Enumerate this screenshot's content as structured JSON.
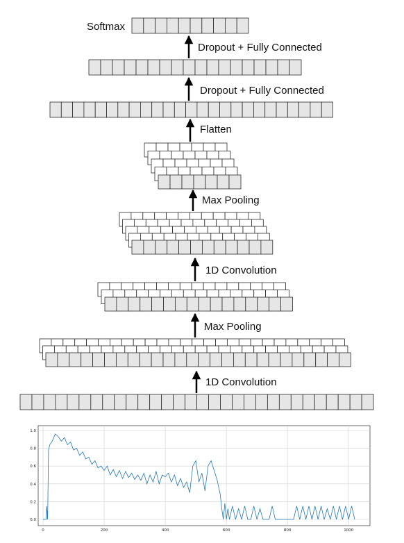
{
  "diagram": {
    "labels": {
      "softmax": "Softmax",
      "dense2": "Dropout + Fully Connected",
      "dense1": "Dropout + Fully Connected",
      "flatten": "Flatten",
      "pool2": "Max Pooling",
      "conv2": "1D Convolution",
      "pool1": "Max Pooling",
      "conv1": "1D Convolution"
    },
    "layers": [
      {
        "id": "output",
        "name": "softmax-output-layer",
        "cells": 10,
        "depth": 1
      },
      {
        "id": "dense2",
        "name": "dense-layer-2",
        "cells": 18,
        "depth": 1
      },
      {
        "id": "dense1",
        "name": "dense-layer-1",
        "cells": 25,
        "depth": 1
      },
      {
        "id": "pool2",
        "name": "max-pool-2-feature-maps",
        "cells": 7,
        "depth": 5
      },
      {
        "id": "conv2",
        "name": "conv-2-feature-maps",
        "cells": 12,
        "depth": 5
      },
      {
        "id": "pool1",
        "name": "max-pool-1-feature-maps",
        "cells": 16,
        "depth": 3
      },
      {
        "id": "conv1",
        "name": "conv-1-feature-maps",
        "cells": 26,
        "depth": 3
      },
      {
        "id": "input",
        "name": "input-layer",
        "cells": 30,
        "depth": 1
      }
    ],
    "cell_fill": "#e6e6e6",
    "cell_stroke": "#2a2a2a",
    "arrow_color": "#000000"
  },
  "chart_data": {
    "type": "line",
    "title": "",
    "xlabel": "",
    "ylabel": "",
    "xlim": [
      0,
      1040
    ],
    "ylim": [
      -0.05,
      1.05
    ],
    "x_ticks": [
      "0",
      "200",
      "400",
      "600",
      "800",
      "1000"
    ],
    "y_ticks": [
      "0.0",
      "0.2",
      "0.4",
      "0.6",
      "0.8",
      "1.0"
    ],
    "grid": true,
    "series": [
      {
        "color": "#1f77b4",
        "x": [
          0,
          10,
          12,
          15,
          18,
          22,
          30,
          40,
          50,
          60,
          70,
          80,
          90,
          100,
          110,
          120,
          130,
          140,
          150,
          160,
          170,
          180,
          190,
          200,
          210,
          220,
          230,
          240,
          250,
          260,
          270,
          280,
          290,
          300,
          310,
          320,
          330,
          340,
          350,
          360,
          370,
          380,
          390,
          400,
          410,
          420,
          430,
          440,
          450,
          460,
          470,
          480,
          490,
          500,
          510,
          520,
          530,
          540,
          550,
          560,
          570,
          580,
          585,
          590,
          595,
          600,
          605,
          610,
          620,
          630,
          640,
          650,
          660,
          670,
          680,
          690,
          700,
          710,
          720,
          730,
          740,
          750,
          760,
          770,
          780,
          790,
          800,
          810,
          820,
          830,
          840,
          850,
          860,
          870,
          880,
          890,
          900,
          910,
          920,
          930,
          940,
          950,
          960,
          970,
          980,
          990,
          1000,
          1010,
          1020
        ],
        "y": [
          0.0,
          0.0,
          0.15,
          0.0,
          0.78,
          0.84,
          0.88,
          0.96,
          0.93,
          0.88,
          0.92,
          0.84,
          0.87,
          0.78,
          0.8,
          0.72,
          0.76,
          0.68,
          0.7,
          0.62,
          0.66,
          0.58,
          0.6,
          0.55,
          0.6,
          0.5,
          0.56,
          0.48,
          0.55,
          0.46,
          0.54,
          0.47,
          0.52,
          0.45,
          0.5,
          0.44,
          0.52,
          0.4,
          0.5,
          0.42,
          0.54,
          0.4,
          0.5,
          0.48,
          0.52,
          0.42,
          0.5,
          0.38,
          0.46,
          0.36,
          0.42,
          0.3,
          0.6,
          0.66,
          0.42,
          0.52,
          0.32,
          0.6,
          0.66,
          0.55,
          0.44,
          0.28,
          0.12,
          0.0,
          0.18,
          0.0,
          0.12,
          0.0,
          0.15,
          0.0,
          0.12,
          0.0,
          0.15,
          0.0,
          0.0,
          0.15,
          0.0,
          0.12,
          0.0,
          0.0,
          0.0,
          0.15,
          0.0,
          0.0,
          0.0,
          0.0,
          0.0,
          0.0,
          0.0,
          0.15,
          0.0,
          0.15,
          0.0,
          0.15,
          0.0,
          0.15,
          0.0,
          0.15,
          0.0,
          0.12,
          0.0,
          0.15,
          0.0,
          0.15,
          0.0,
          0.15,
          0.0,
          0.15,
          0.0
        ]
      }
    ]
  }
}
